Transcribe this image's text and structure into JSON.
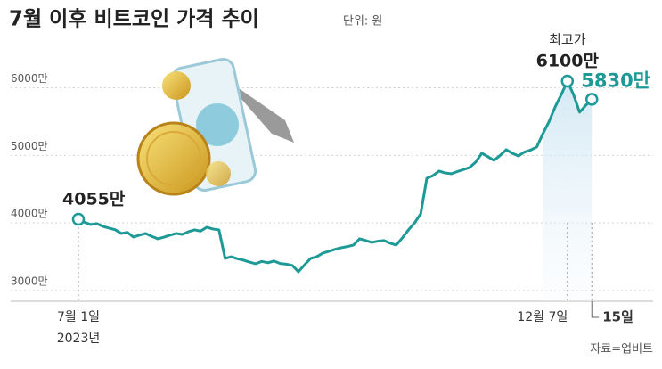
{
  "chart_data": {
    "type": "line",
    "title": "7월 이후 비트코인 가격 추이",
    "subtitle": "단위: 원",
    "source": "자료=업비트",
    "color": "#1e9a96",
    "values": [
      4055,
      4010,
      3976,
      3990,
      3950,
      3923,
      3900,
      3844,
      3860,
      3791,
      3820,
      3844,
      3800,
      3765,
      3790,
      3820,
      3844,
      3830,
      3870,
      3897,
      3880,
      3936,
      3910,
      3897,
      3475,
      3500,
      3470,
      3449,
      3420,
      3396,
      3430,
      3410,
      3436,
      3400,
      3390,
      3370,
      3277,
      3380,
      3475,
      3500,
      3554,
      3580,
      3610,
      3633,
      3650,
      3673,
      3765,
      3740,
      3712,
      3730,
      3739,
      3700,
      3673,
      3780,
      3897,
      4000,
      4134,
      4662,
      4700,
      4767,
      4740,
      4728,
      4760,
      4790,
      4820,
      4900,
      5031,
      4980,
      4926,
      5000,
      5084,
      5030,
      4992,
      5050,
      5080,
      5124,
      5322,
      5500,
      5718,
      5900,
      6100,
      5900,
      5640,
      5740,
      5830
    ],
    "ylim": [
      2900,
      6300
    ],
    "yticks": [
      {
        "value": 3000,
        "label": "3000만"
      },
      {
        "value": 4000,
        "label": "4000만"
      },
      {
        "value": 5000,
        "label": "5000만"
      },
      {
        "value": 6000,
        "label": "6000만"
      }
    ],
    "xticks": [
      {
        "value": 0,
        "label": "7월 1일"
      },
      {
        "value": 80,
        "label": "12월 7일"
      },
      {
        "value": 84,
        "label": "15일"
      }
    ],
    "year_label": "2023년",
    "annotations": [
      {
        "index": 0,
        "text": "4055만"
      },
      {
        "index": 80,
        "note": "최고가",
        "text": "6100만"
      },
      {
        "index": 84,
        "text": "5830만"
      }
    ],
    "grid": true
  }
}
